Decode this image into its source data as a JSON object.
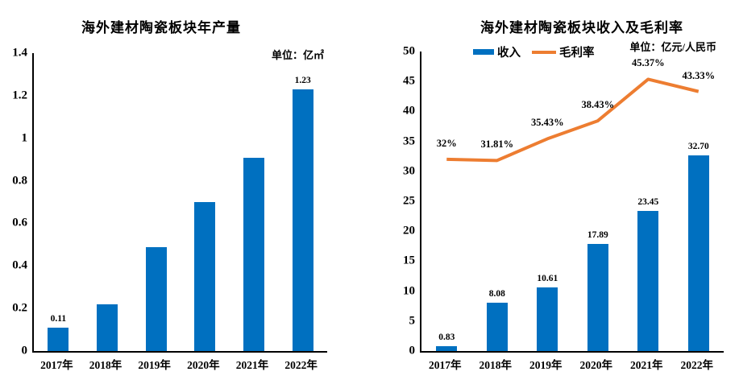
{
  "colors": {
    "bar_blue": "#0070C0",
    "line_orange": "#ED7D31",
    "axis": "#000000",
    "background": "#FFFFFF"
  },
  "chart_data": [
    {
      "type": "bar",
      "title": "海外建材陶瓷板块年产量",
      "unit": "单位：亿㎡",
      "categories": [
        "2017年",
        "2018年",
        "2019年",
        "2020年",
        "2021年",
        "2022年"
      ],
      "ylim": [
        0,
        1.4
      ],
      "yticks": [
        "0",
        "0.2",
        "0.4",
        "0.6",
        "0.8",
        "1",
        "1.2",
        "1.4"
      ],
      "grid": false,
      "legend_position": "none",
      "series": [
        {
          "type": "bar",
          "values": [
            0.11,
            0.22,
            0.49,
            0.7,
            0.91,
            1.23
          ],
          "labels": [
            "0.11",
            "",
            "",
            "",
            "",
            "1.23"
          ],
          "color": "#0070C0"
        }
      ]
    },
    {
      "type": "bar+line",
      "title": "海外建材陶瓷板块收入及毛利率",
      "unit": "单位：亿元/人民币",
      "categories": [
        "2017年",
        "2018年",
        "2019年",
        "2020年",
        "2021年",
        "2022年"
      ],
      "ylim": [
        0,
        50
      ],
      "yticks": [
        "0",
        "5",
        "10",
        "15",
        "20",
        "25",
        "30",
        "35",
        "40",
        "45",
        "50"
      ],
      "grid": false,
      "legend_position": "top",
      "series": [
        {
          "type": "bar",
          "name": "收入",
          "values": [
            0.83,
            8.08,
            10.61,
            17.89,
            23.45,
            32.7
          ],
          "labels": [
            "0.83",
            "8.08",
            "10.61",
            "17.89",
            "23.45",
            "32.70"
          ],
          "color": "#0070C0"
        },
        {
          "type": "line",
          "name": "毛利率",
          "values": [
            32,
            31.81,
            35.43,
            38.43,
            45.37,
            43.33
          ],
          "labels": [
            "32%",
            "31.81%",
            "35.43%",
            "38.43%",
            "45.37%",
            "43.33%"
          ],
          "color": "#ED7D31"
        }
      ]
    }
  ]
}
